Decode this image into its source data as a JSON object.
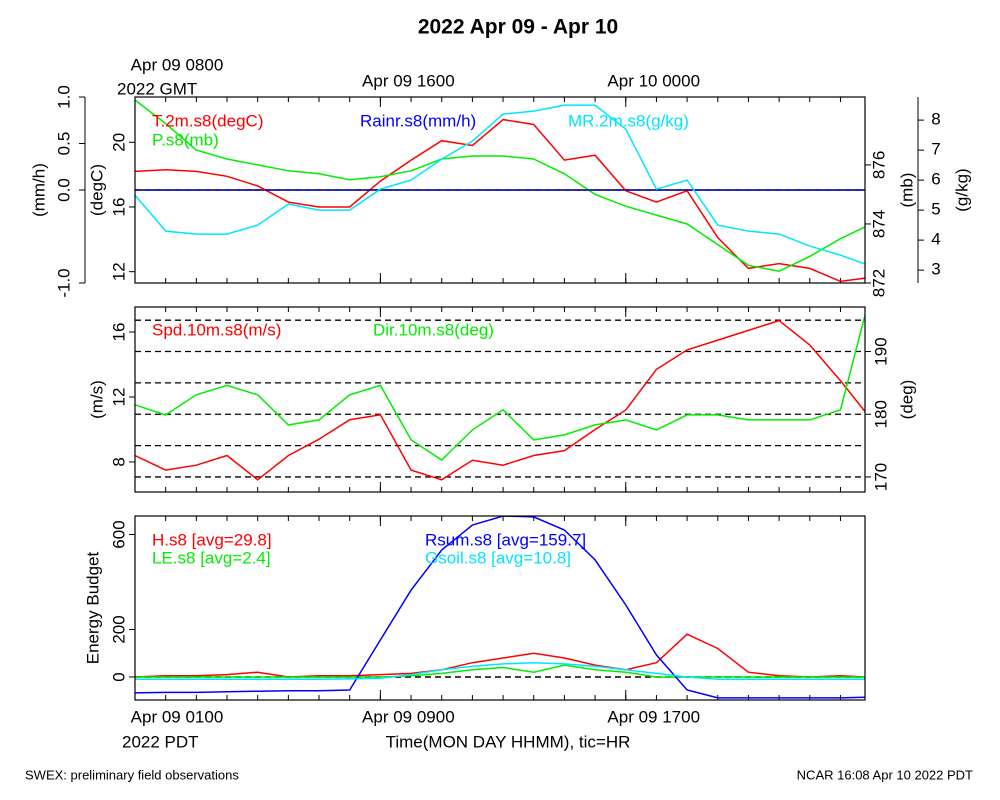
{
  "title": "2022 Apr 09 - Apr 10",
  "footer_left": "SWEX: preliminary field observations",
  "footer_right": "NCAR 16:08 Apr 10 2022 PDT",
  "time_axis": {
    "x": [
      0,
      1,
      2,
      3,
      4,
      5,
      6,
      7,
      8,
      9,
      10,
      11,
      12,
      13,
      14,
      15,
      16,
      17,
      18,
      19,
      20,
      21,
      22,
      23,
      23.8
    ],
    "xlim": [
      0,
      23.8
    ],
    "xticks": [
      {
        "value": 0,
        "label": "Apr 09 0100"
      },
      {
        "value": 8,
        "label": "Apr 09 0900"
      },
      {
        "value": 16,
        "label": "Apr 09 1700"
      }
    ],
    "xticks_top": [
      {
        "value": 0,
        "label": "Apr 09 0800"
      },
      {
        "value": 8,
        "label": "Apr 09 1600"
      },
      {
        "value": 16,
        "label": "Apr 10 0000"
      }
    ],
    "minor_ticks": [
      0,
      1,
      2,
      3,
      4,
      5,
      6,
      7,
      8,
      9,
      10,
      11,
      12,
      13,
      14,
      15,
      16,
      17,
      18,
      19,
      20,
      21,
      22,
      23
    ],
    "top_zone": "2022 GMT",
    "bottom_zone": "2022 PDT",
    "xlabel": "Time(MON DAY HHMM), tic=HR"
  },
  "chart_data": [
    {
      "type": "line",
      "axes": [
        {
          "label": "(mm/h)",
          "ylim": [
            -1,
            1
          ],
          "yticks": [
            {
              "value": -1,
              "label": "-1.0"
            },
            {
              "value": 0,
              "label": "0.0"
            },
            0.5,
            {
              "value": 1,
              "label": "1.0"
            }
          ],
          "hlines": [
            0
          ]
        },
        {
          "label": "(degC)",
          "ylim": [
            11.3,
            22.8
          ],
          "yticks": [
            12,
            16,
            20
          ]
        },
        {
          "label": "(mb)",
          "ylim": [
            872,
            878.3
          ],
          "yticks": [
            872,
            874,
            876
          ]
        },
        {
          "label": "(g/kg)",
          "ylim": [
            2.57,
            8.77
          ],
          "yticks": [
            3,
            4,
            5,
            6,
            7,
            8
          ]
        }
      ],
      "series": [
        {
          "name": "T.2m.s8(degC)",
          "color": "#ff0000",
          "axis": 1,
          "values": [
            18.2,
            18.3,
            18.2,
            17.9,
            17.3,
            16.3,
            16.0,
            16.0,
            17.6,
            18.9,
            20.1,
            19.8,
            21.4,
            21.1,
            18.9,
            19.2,
            17.0,
            16.3,
            17.0,
            14.1,
            12.2,
            12.5,
            12.2,
            11.4,
            11.6
          ]
        },
        {
          "name": "P.s8(mb)",
          "color": "#00ee00",
          "axis": 2,
          "values": [
            878.2,
            877.4,
            876.5,
            876.2,
            876.0,
            875.8,
            875.7,
            875.5,
            875.6,
            875.8,
            876.2,
            876.3,
            876.3,
            876.2,
            875.7,
            875.0,
            874.6,
            874.3,
            874.0,
            873.3,
            872.6,
            872.4,
            872.9,
            873.5,
            873.9
          ]
        },
        {
          "name": "Rainr.s8(mm/h)",
          "color": "#0000ff",
          "axis": 0,
          "dashed": true,
          "values": [
            0,
            0,
            0,
            0,
            0,
            0,
            0,
            0,
            0,
            0,
            0,
            0,
            0,
            0,
            0,
            0,
            0,
            0,
            0,
            0,
            0,
            0,
            0,
            0,
            0
          ]
        },
        {
          "name": "MR.2m.s8(g/kg)",
          "color": "#00e5ff",
          "axis": 3,
          "values": [
            5.5,
            4.3,
            4.2,
            4.2,
            4.5,
            5.2,
            5.0,
            5.0,
            5.7,
            6.0,
            6.7,
            7.3,
            8.2,
            8.3,
            8.5,
            8.5,
            7.7,
            5.7,
            6.0,
            4.5,
            4.3,
            4.2,
            3.8,
            3.5,
            3.2
          ]
        }
      ]
    },
    {
      "type": "line",
      "axes": [
        {
          "label": "(m/s)",
          "ylim": [
            6.15,
            17.54
          ],
          "yticks": [
            8,
            12,
            16
          ]
        },
        {
          "label": "(deg)",
          "ylim": [
            167.6,
            197.1
          ],
          "yticks": [
            170,
            180,
            190
          ],
          "dashed_grid": [
            170,
            175,
            180,
            185,
            190,
            195
          ]
        }
      ],
      "series": [
        {
          "name": "Spd.10m.s8(m/s)",
          "color": "#ff0000",
          "axis": 0,
          "values": [
            8.4,
            7.5,
            7.8,
            8.4,
            6.9,
            8.4,
            9.4,
            10.6,
            10.9,
            7.5,
            6.9,
            8.1,
            7.8,
            8.4,
            8.7,
            10.0,
            11.2,
            13.7,
            14.9,
            15.5,
            16.1,
            16.7,
            15.2,
            13.0,
            11.1
          ]
        },
        {
          "name": "Dir.10m.s8(deg)",
          "color": "#00ee00",
          "axis": 1,
          "values": [
            181.5,
            179.9,
            183.1,
            184.6,
            183.1,
            178.3,
            179.1,
            183.1,
            184.6,
            175.9,
            172.7,
            177.5,
            180.7,
            175.9,
            176.7,
            178.3,
            179.1,
            177.5,
            179.9,
            179.9,
            179.1,
            179.1,
            179.1,
            180.7,
            195.8
          ]
        }
      ]
    },
    {
      "type": "line",
      "axes": [
        {
          "label": "Energy Budget",
          "ylim": [
            -97,
            678
          ],
          "yticks": [
            0,
            200,
            600
          ],
          "dashed_hlines": [
            0
          ]
        }
      ],
      "series": [
        {
          "name": "H.s8 [avg=29.8]",
          "color": "#ff0000",
          "axis": 0,
          "values": [
            0,
            5,
            5,
            10,
            20,
            0,
            5,
            5,
            10,
            15,
            30,
            60,
            80,
            100,
            80,
            50,
            30,
            60,
            180,
            120,
            20,
            5,
            0,
            5,
            0
          ]
        },
        {
          "name": "LE.s8 [avg=2.4]",
          "color": "#00ee00",
          "axis": 0,
          "values": [
            0,
            0,
            0,
            0,
            0,
            0,
            0,
            0,
            0,
            5,
            15,
            30,
            40,
            20,
            50,
            30,
            20,
            0,
            0,
            0,
            0,
            0,
            0,
            0,
            0
          ]
        },
        {
          "name": "Rsum.s8 [avg=159.7]",
          "color": "#0000ff",
          "axis": 0,
          "values": [
            -67,
            -65,
            -65,
            -62,
            -60,
            -58,
            -58,
            -55,
            156,
            366,
            535,
            640,
            678,
            674,
            619,
            493,
            303,
            93,
            -55,
            -88,
            -88,
            -88,
            -88,
            -88,
            -85
          ]
        },
        {
          "name": "Gsoil.s8 [avg=10.8]",
          "color": "#00e5ff",
          "axis": 0,
          "values": [
            -10,
            -10,
            -10,
            -10,
            -10,
            -10,
            -10,
            -8,
            -5,
            10,
            30,
            45,
            55,
            60,
            55,
            45,
            30,
            15,
            0,
            -10,
            -10,
            -10,
            -10,
            -10,
            -10
          ]
        }
      ]
    }
  ]
}
